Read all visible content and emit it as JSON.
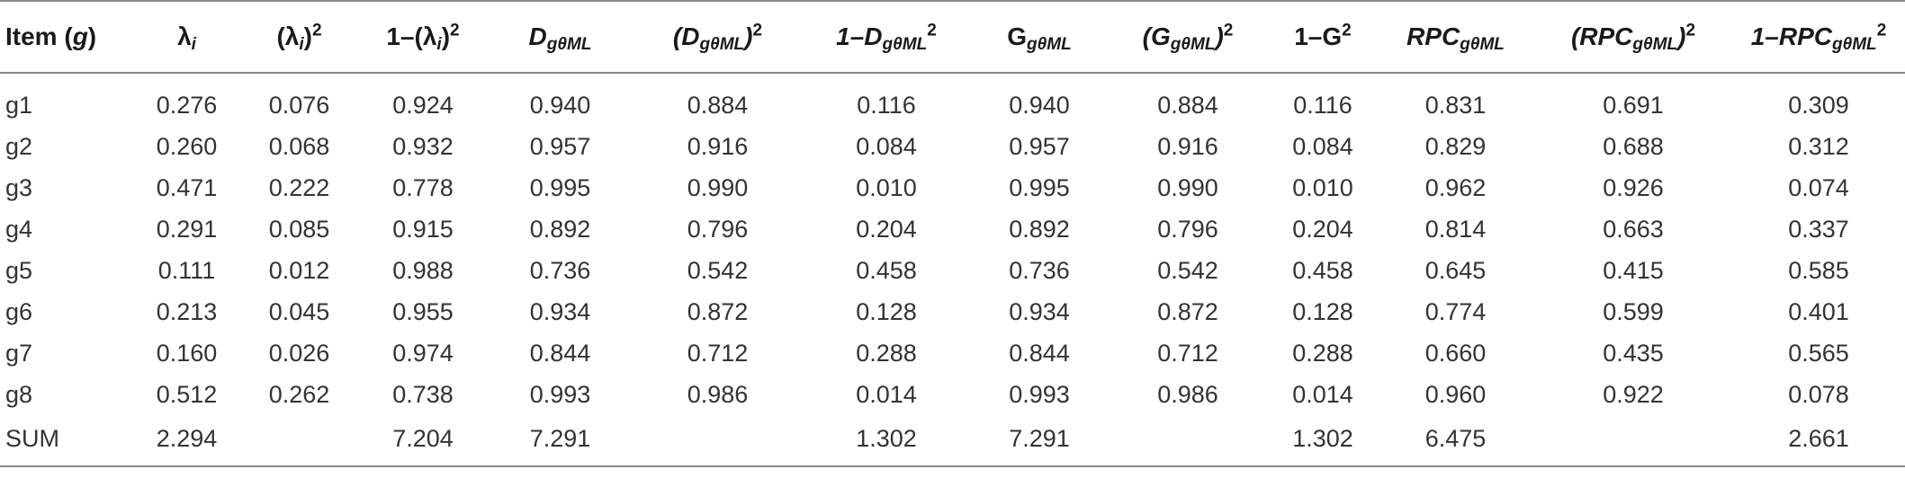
{
  "table": {
    "headers": [
      {
        "pre": "Item (",
        "it": "g",
        "post": ")"
      },
      {
        "base": "λ",
        "sub": "i"
      },
      {
        "open": "(λ",
        "sub": "i",
        "close": ")",
        "sup": "2"
      },
      {
        "pre": "1–(λ",
        "sub": "i",
        "close": ")",
        "sup": "2"
      },
      {
        "base": "D",
        "sub": "gθML"
      },
      {
        "open": "(D",
        "sub": "gθML",
        "close": ")",
        "sup": "2"
      },
      {
        "pre": "1–D",
        "sub": "gθML",
        "sup": "2"
      },
      {
        "base": "G",
        "sub": "gθML"
      },
      {
        "open": "(G",
        "sub": "gθML",
        "close": ")",
        "sup": "2"
      },
      {
        "pre": "1–G",
        "sup": "2"
      },
      {
        "base": "RPC",
        "sub": "gθML"
      },
      {
        "open": "(RPC",
        "sub": "gθML",
        "close": ")",
        "sup": "2"
      },
      {
        "pre": "1–RPC",
        "sub": "gθML",
        "sup": "2"
      }
    ],
    "rows": [
      [
        "g1",
        "0.276",
        "0.076",
        "0.924",
        "0.940",
        "0.884",
        "0.116",
        "0.940",
        "0.884",
        "0.116",
        "0.831",
        "0.691",
        "0.309"
      ],
      [
        "g2",
        "0.260",
        "0.068",
        "0.932",
        "0.957",
        "0.916",
        "0.084",
        "0.957",
        "0.916",
        "0.084",
        "0.829",
        "0.688",
        "0.312"
      ],
      [
        "g3",
        "0.471",
        "0.222",
        "0.778",
        "0.995",
        "0.990",
        "0.010",
        "0.995",
        "0.990",
        "0.010",
        "0.962",
        "0.926",
        "0.074"
      ],
      [
        "g4",
        "0.291",
        "0.085",
        "0.915",
        "0.892",
        "0.796",
        "0.204",
        "0.892",
        "0.796",
        "0.204",
        "0.814",
        "0.663",
        "0.337"
      ],
      [
        "g5",
        "0.111",
        "0.012",
        "0.988",
        "0.736",
        "0.542",
        "0.458",
        "0.736",
        "0.542",
        "0.458",
        "0.645",
        "0.415",
        "0.585"
      ],
      [
        "g6",
        "0.213",
        "0.045",
        "0.955",
        "0.934",
        "0.872",
        "0.128",
        "0.934",
        "0.872",
        "0.128",
        "0.774",
        "0.599",
        "0.401"
      ],
      [
        "g7",
        "0.160",
        "0.026",
        "0.974",
        "0.844",
        "0.712",
        "0.288",
        "0.844",
        "0.712",
        "0.288",
        "0.660",
        "0.435",
        "0.565"
      ],
      [
        "g8",
        "0.512",
        "0.262",
        "0.738",
        "0.993",
        "0.986",
        "0.014",
        "0.993",
        "0.986",
        "0.014",
        "0.960",
        "0.922",
        "0.078"
      ],
      [
        "SUM",
        "2.294",
        "",
        "7.204",
        "7.291",
        "",
        "1.302",
        "7.291",
        "",
        "1.302",
        "6.475",
        "",
        "2.661"
      ]
    ]
  }
}
